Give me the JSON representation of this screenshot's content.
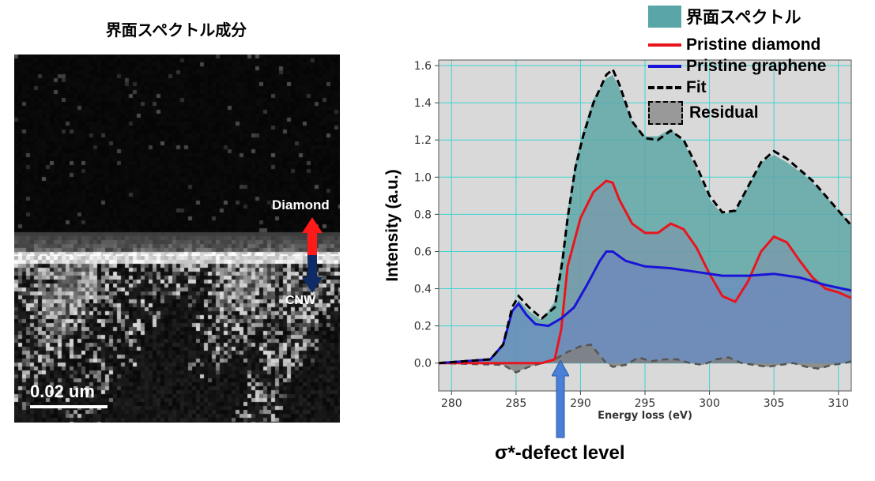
{
  "left_panel": {
    "title": "界面スペクトル成分",
    "label_top": "Diamond",
    "label_bottom": "CNW",
    "scale_bar": "0.02 um",
    "arrow_up_color": "#ff1a1a",
    "arrow_down_color": "#102a66"
  },
  "annotation": {
    "text": "σ*-defect level",
    "arrow_color": "#4a7fd6"
  },
  "chart_data": {
    "type": "area",
    "xlabel": "Energy loss (eV)",
    "ylabel": "Intensity (a.u.)",
    "xlim": [
      279,
      311
    ],
    "ylim": [
      -0.15,
      1.63
    ],
    "xticks": [
      280,
      285,
      290,
      295,
      300,
      305,
      310
    ],
    "yticks": [
      0.0,
      0.2,
      0.4,
      0.6,
      0.8,
      1.0,
      1.2,
      1.4,
      1.6
    ],
    "ytick_labels": [
      "0.0",
      "0.2",
      "0.4",
      "0.6",
      "0.8",
      "1.0",
      "1.2",
      "1.4",
      "1.6"
    ],
    "grid": true,
    "legend_position": "top-right",
    "series": [
      {
        "name": "界面スペクトル",
        "style": "filled-area",
        "color": "#5aa6a6",
        "x": [
          279,
          283,
          284,
          284.7,
          285.2,
          286,
          287,
          288,
          288.6,
          289,
          289.6,
          290.2,
          291,
          292,
          292.5,
          293,
          294,
          295,
          296,
          297,
          298,
          299,
          300,
          301,
          302,
          303,
          304,
          305,
          306,
          307,
          308,
          309,
          310,
          311
        ],
        "y": [
          0,
          0.02,
          0.1,
          0.28,
          0.34,
          0.28,
          0.23,
          0.33,
          0.6,
          0.82,
          1.08,
          1.25,
          1.42,
          1.53,
          1.55,
          1.48,
          1.3,
          1.22,
          1.22,
          1.26,
          1.19,
          1.04,
          0.88,
          0.8,
          0.82,
          0.95,
          1.08,
          1.12,
          1.08,
          1.03,
          0.97,
          0.9,
          0.82,
          0.75
        ]
      },
      {
        "name": "Pristine diamond",
        "style": "line",
        "color": "#e8151d",
        "x": [
          279,
          287,
          288,
          288.5,
          289,
          290,
          291,
          292,
          292.5,
          293,
          294,
          295,
          296,
          297,
          298,
          299,
          300,
          301,
          302,
          303,
          304,
          305,
          306,
          307,
          308,
          309,
          310,
          311
        ],
        "y": [
          0,
          0,
          0.02,
          0.18,
          0.52,
          0.78,
          0.92,
          0.98,
          0.97,
          0.88,
          0.75,
          0.7,
          0.7,
          0.75,
          0.72,
          0.62,
          0.48,
          0.36,
          0.33,
          0.44,
          0.6,
          0.68,
          0.65,
          0.55,
          0.46,
          0.4,
          0.38,
          0.35
        ]
      },
      {
        "name": "Pristine graphene",
        "style": "line",
        "color": "#1a14d6",
        "x": [
          279,
          283,
          284,
          284.7,
          285.2,
          285.8,
          286.5,
          287.5,
          288.5,
          289.5,
          290.5,
          291.5,
          292,
          292.5,
          293.5,
          295,
          297,
          299,
          301,
          303,
          305,
          307,
          309,
          311
        ],
        "y": [
          0,
          0.02,
          0.1,
          0.28,
          0.32,
          0.26,
          0.21,
          0.2,
          0.24,
          0.3,
          0.42,
          0.55,
          0.6,
          0.6,
          0.55,
          0.52,
          0.51,
          0.49,
          0.47,
          0.47,
          0.48,
          0.46,
          0.42,
          0.39
        ]
      },
      {
        "name": "Fit",
        "style": "dashed-line",
        "color": "#000000",
        "x": [
          279,
          283,
          284,
          284.7,
          285.2,
          286,
          287,
          288,
          288.6,
          289,
          289.6,
          290.2,
          291,
          292,
          292.5,
          293,
          294,
          295,
          296,
          297,
          298,
          299,
          300,
          301,
          302,
          303,
          304,
          305,
          306,
          307,
          308,
          309,
          310,
          311
        ],
        "y": [
          0,
          0.02,
          0.1,
          0.3,
          0.36,
          0.3,
          0.24,
          0.3,
          0.55,
          0.78,
          1.05,
          1.22,
          1.4,
          1.55,
          1.58,
          1.5,
          1.3,
          1.21,
          1.2,
          1.25,
          1.2,
          1.06,
          0.9,
          0.81,
          0.82,
          0.95,
          1.08,
          1.14,
          1.1,
          1.04,
          0.98,
          0.9,
          0.82,
          0.74
        ]
      },
      {
        "name": "Residual",
        "style": "dashed-area",
        "color": "#808080",
        "x": [
          279,
          284,
          285,
          286,
          287,
          288,
          289,
          290,
          290.8,
          291.5,
          292,
          292.5,
          293.5,
          294.5,
          295.5,
          296.5,
          297.5,
          298.5,
          299.5,
          300.5,
          301.5,
          302.5,
          303.5,
          304.5,
          305.5,
          306.5,
          307.5,
          308.5,
          309.5,
          310.5,
          311
        ],
        "y": [
          0,
          -0.01,
          -0.05,
          -0.02,
          0.0,
          0.02,
          0.06,
          0.09,
          0.1,
          0.04,
          0.0,
          -0.02,
          -0.01,
          0.03,
          0.01,
          0.02,
          0.02,
          0.0,
          -0.01,
          0.02,
          0.03,
          0.0,
          -0.01,
          -0.02,
          -0.01,
          0.0,
          -0.02,
          -0.03,
          -0.01,
          0.0,
          0.01
        ]
      }
    ]
  }
}
